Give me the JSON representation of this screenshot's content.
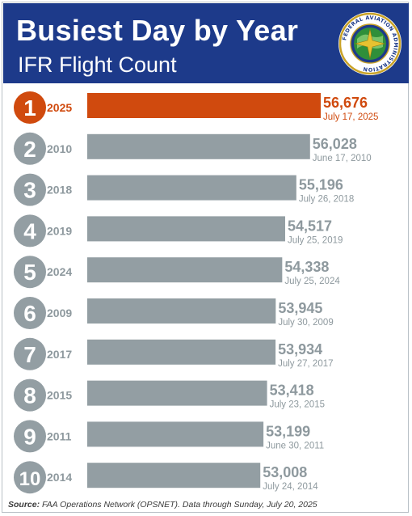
{
  "header": {
    "title": "Busiest Day by Year",
    "subtitle": "IFR Flight Count",
    "seal_text": "FEDERAL AVIATION ADMINISTRATION"
  },
  "colors": {
    "header_bg": "#1d3a8a",
    "highlight": "#d04a0e",
    "bar": "#939ea3",
    "value_text": "#8e999e"
  },
  "chart_data": {
    "type": "bar",
    "orientation": "horizontal",
    "title": "Busiest Day by Year",
    "subtitle": "IFR Flight Count",
    "ranks": [
      "1",
      "2",
      "3",
      "4",
      "5",
      "6",
      "7",
      "8",
      "9",
      "10"
    ],
    "categories": [
      "2025",
      "2010",
      "2018",
      "2019",
      "2024",
      "2009",
      "2017",
      "2015",
      "2011",
      "2014"
    ],
    "values": [
      56676,
      56028,
      55196,
      54517,
      54338,
      53945,
      53934,
      53418,
      53199,
      53008
    ],
    "value_labels": [
      "56,676",
      "56,028",
      "55,196",
      "54,517",
      "54,338",
      "53,945",
      "53,934",
      "53,418",
      "53,199",
      "53,008"
    ],
    "dates": [
      "July 17, 2025",
      "June 17, 2010",
      "July 26, 2018",
      "July 25, 2019",
      "July 25, 2024",
      "July 30, 2009",
      "July 27, 2017",
      "July 23, 2015",
      "June 30, 2011",
      "July 24, 2014"
    ],
    "highlight_index": 0,
    "xlim": [
      42500,
      57000
    ],
    "grid": false,
    "legend": "none"
  },
  "footer": {
    "source_label": "Source:",
    "source_text": "FAA Operations Network (OPSNET). Data through Sunday, July 20, 2025"
  }
}
